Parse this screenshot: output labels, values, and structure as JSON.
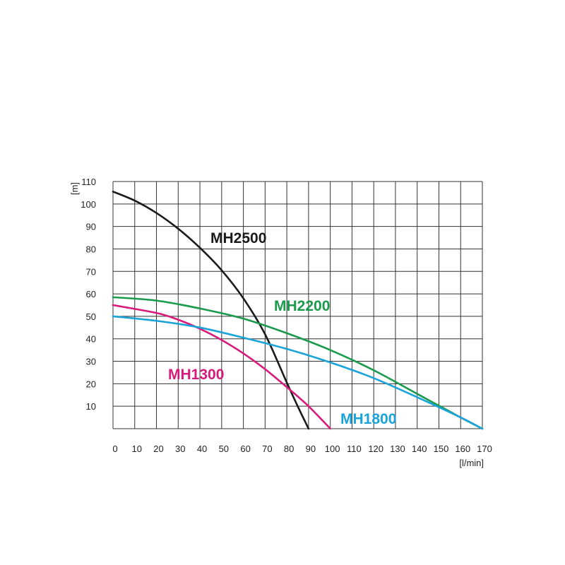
{
  "chart_data": {
    "type": "line",
    "xlabel": "[l/min]",
    "ylabel": "[m]",
    "xlim": [
      0,
      170
    ],
    "ylim": [
      0,
      110
    ],
    "x_ticks": [
      0,
      10,
      20,
      30,
      40,
      50,
      60,
      70,
      80,
      90,
      100,
      110,
      120,
      130,
      140,
      150,
      160,
      170
    ],
    "y_ticks": [
      10,
      20,
      30,
      40,
      50,
      60,
      70,
      80,
      90,
      100,
      110
    ],
    "grid": true,
    "series": [
      {
        "name": "MH2500",
        "color": "#1a1a1a",
        "x": [
          0,
          10,
          20,
          30,
          40,
          50,
          60,
          70,
          80,
          85,
          90
        ],
        "y": [
          105.5,
          101.5,
          96,
          89,
          80.5,
          70.5,
          58,
          42,
          20.5,
          10,
          0
        ]
      },
      {
        "name": "MH2200",
        "color": "#1a9a4c",
        "x": [
          0,
          20,
          40,
          60,
          80,
          100,
          120,
          140,
          160,
          170
        ],
        "y": [
          58.5,
          57,
          53.5,
          49,
          42.5,
          35,
          26,
          15.5,
          5,
          0
        ]
      },
      {
        "name": "MH1300",
        "color": "#d81b7a",
        "x": [
          0,
          20,
          30,
          40,
          50,
          60,
          70,
          80,
          90,
          100
        ],
        "y": [
          55,
          51.5,
          48.5,
          44.5,
          39.5,
          33.5,
          26.5,
          18.5,
          10,
          0
        ]
      },
      {
        "name": "MH1800",
        "color": "#1aa3d9",
        "x": [
          0,
          20,
          40,
          60,
          80,
          100,
          120,
          140,
          160,
          170
        ],
        "y": [
          50,
          48,
          45,
          40.5,
          35.5,
          29.5,
          22.5,
          14,
          5,
          0
        ]
      }
    ]
  }
}
